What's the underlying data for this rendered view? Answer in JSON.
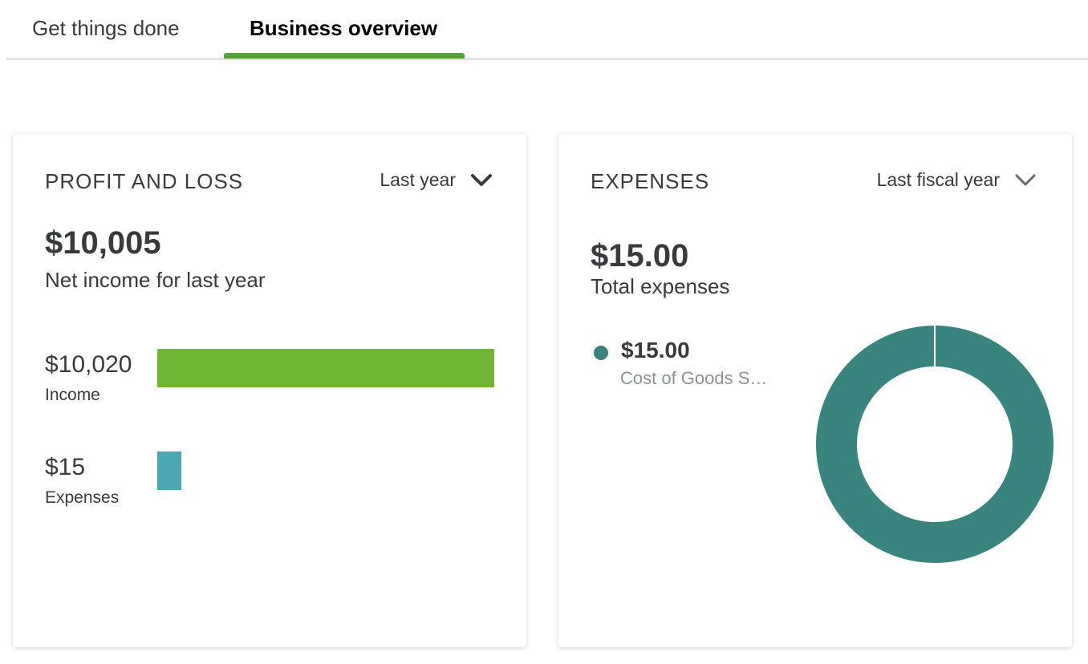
{
  "tabs": [
    {
      "label": "Get things done",
      "active": false
    },
    {
      "label": "Business overview",
      "active": true
    }
  ],
  "accent_color": "#53a53a",
  "profit_and_loss": {
    "title": "PROFIT AND LOSS",
    "period": "Last year",
    "net_income": "$10,005",
    "net_income_label": "Net income for last year",
    "income_amount": "$10,020",
    "income_label": "Income",
    "income_value": 10020,
    "income_color": "#6fb635",
    "expenses_amount": "$15",
    "expenses_label": "Expenses",
    "expenses_value": 15,
    "expenses_color": "#4ba7b4"
  },
  "expenses": {
    "title": "EXPENSES",
    "period": "Last fiscal year",
    "total": "$15.00",
    "total_label": "Total expenses",
    "legend_amount": "$15.00",
    "legend_label": "Cost of Goods S…",
    "category_share": 1.0,
    "color": "#3a8480"
  },
  "icons": {
    "pl_period": "chevron-down-icon",
    "ex_period": "chevron-down-icon"
  }
}
